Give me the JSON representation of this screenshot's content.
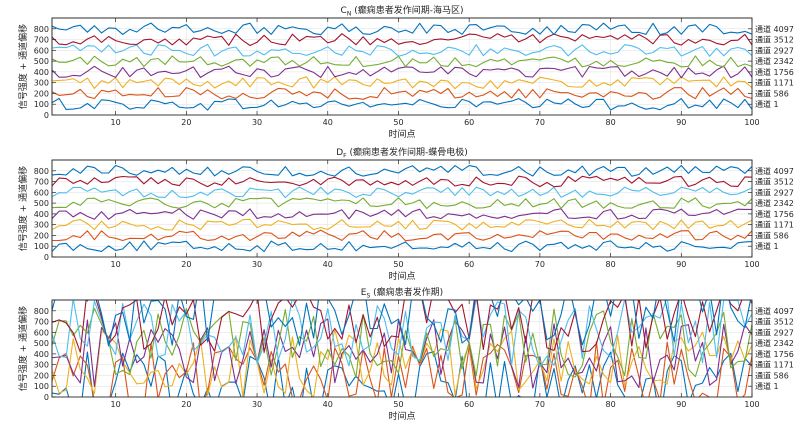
{
  "chart_data": [
    {
      "type": "line",
      "title": "C",
      "title_sub": "N",
      "title_rest": " (癫痫患者发作间期-海马区)",
      "xlabel": "时间点",
      "ylabel": "信号强度 + 通道偏移",
      "xlim": [
        1,
        100
      ],
      "ylim": [
        0,
        900
      ],
      "x_ticks": [
        10,
        20,
        30,
        40,
        50,
        60,
        70,
        80,
        90,
        100
      ],
      "y_ticks": [
        0,
        100,
        200,
        300,
        400,
        500,
        600,
        700,
        800
      ],
      "grid": true,
      "right_labels": [
        "通道 4097",
        "通道 3512",
        "通道 2927",
        "通道 2342",
        "通道 1756",
        "通道 1171",
        "通道 586",
        "通道 1"
      ],
      "series": [
        {
          "baseline": 100,
          "amplitude": 55,
          "color": "#0072BD"
        },
        {
          "baseline": 200,
          "amplitude": 55,
          "color": "#D95319"
        },
        {
          "baseline": 300,
          "amplitude": 55,
          "color": "#EDB120"
        },
        {
          "baseline": 400,
          "amplitude": 55,
          "color": "#7E2F8E"
        },
        {
          "baseline": 500,
          "amplitude": 55,
          "color": "#77AC30"
        },
        {
          "baseline": 600,
          "amplitude": 55,
          "color": "#4DBEEE"
        },
        {
          "baseline": 700,
          "amplitude": 55,
          "color": "#A2142F"
        },
        {
          "baseline": 800,
          "amplitude": 55,
          "color": "#0072BD"
        }
      ]
    },
    {
      "type": "line",
      "title": "D",
      "title_sub": "F",
      "title_rest": " (癫痫患者发作间期-蝶骨电极)",
      "xlabel": "时间点",
      "ylabel": "信号强度 + 通道偏移",
      "xlim": [
        1,
        100
      ],
      "ylim": [
        0,
        900
      ],
      "x_ticks": [
        10,
        20,
        30,
        40,
        50,
        60,
        70,
        80,
        90,
        100
      ],
      "y_ticks": [
        0,
        100,
        200,
        300,
        400,
        500,
        600,
        700,
        800
      ],
      "grid": true,
      "right_labels": [
        "通道 4097",
        "通道 3512",
        "通道 2927",
        "通道 2342",
        "通道 1756",
        "通道 1171",
        "通道 586",
        "通道 1"
      ],
      "series": [
        {
          "baseline": 100,
          "amplitude": 50,
          "color": "#0072BD"
        },
        {
          "baseline": 200,
          "amplitude": 50,
          "color": "#D95319"
        },
        {
          "baseline": 300,
          "amplitude": 50,
          "color": "#EDB120"
        },
        {
          "baseline": 400,
          "amplitude": 50,
          "color": "#7E2F8E"
        },
        {
          "baseline": 500,
          "amplitude": 50,
          "color": "#77AC30"
        },
        {
          "baseline": 600,
          "amplitude": 50,
          "color": "#4DBEEE"
        },
        {
          "baseline": 700,
          "amplitude": 50,
          "color": "#A2142F"
        },
        {
          "baseline": 800,
          "amplitude": 50,
          "color": "#0072BD"
        }
      ]
    },
    {
      "type": "line",
      "title": "E",
      "title_sub": "S",
      "title_rest": " (癫痫患者发作期)",
      "xlabel": "时间点",
      "ylabel": "信号强度 + 通道偏移",
      "xlim": [
        1,
        100
      ],
      "ylim": [
        0,
        900
      ],
      "x_ticks": [
        10,
        20,
        30,
        40,
        50,
        60,
        70,
        80,
        90,
        100
      ],
      "y_ticks": [
        0,
        100,
        200,
        300,
        400,
        500,
        600,
        700,
        800
      ],
      "grid": true,
      "right_labels": [
        "通道 4097",
        "通道 3512",
        "通道 2927",
        "通道 2342",
        "通道 1756",
        "通道 1171",
        "通道 586",
        "通道 1"
      ],
      "series": [
        {
          "baseline": 100,
          "amplitude": 330,
          "color": "#0072BD"
        },
        {
          "baseline": 200,
          "amplitude": 330,
          "color": "#D95319"
        },
        {
          "baseline": 300,
          "amplitude": 330,
          "color": "#EDB120"
        },
        {
          "baseline": 400,
          "amplitude": 330,
          "color": "#7E2F8E"
        },
        {
          "baseline": 500,
          "amplitude": 330,
          "color": "#77AC30"
        },
        {
          "baseline": 600,
          "amplitude": 330,
          "color": "#4DBEEE"
        },
        {
          "baseline": 700,
          "amplitude": 330,
          "color": "#A2142F"
        },
        {
          "baseline": 800,
          "amplitude": 330,
          "color": "#0072BD"
        }
      ]
    }
  ]
}
